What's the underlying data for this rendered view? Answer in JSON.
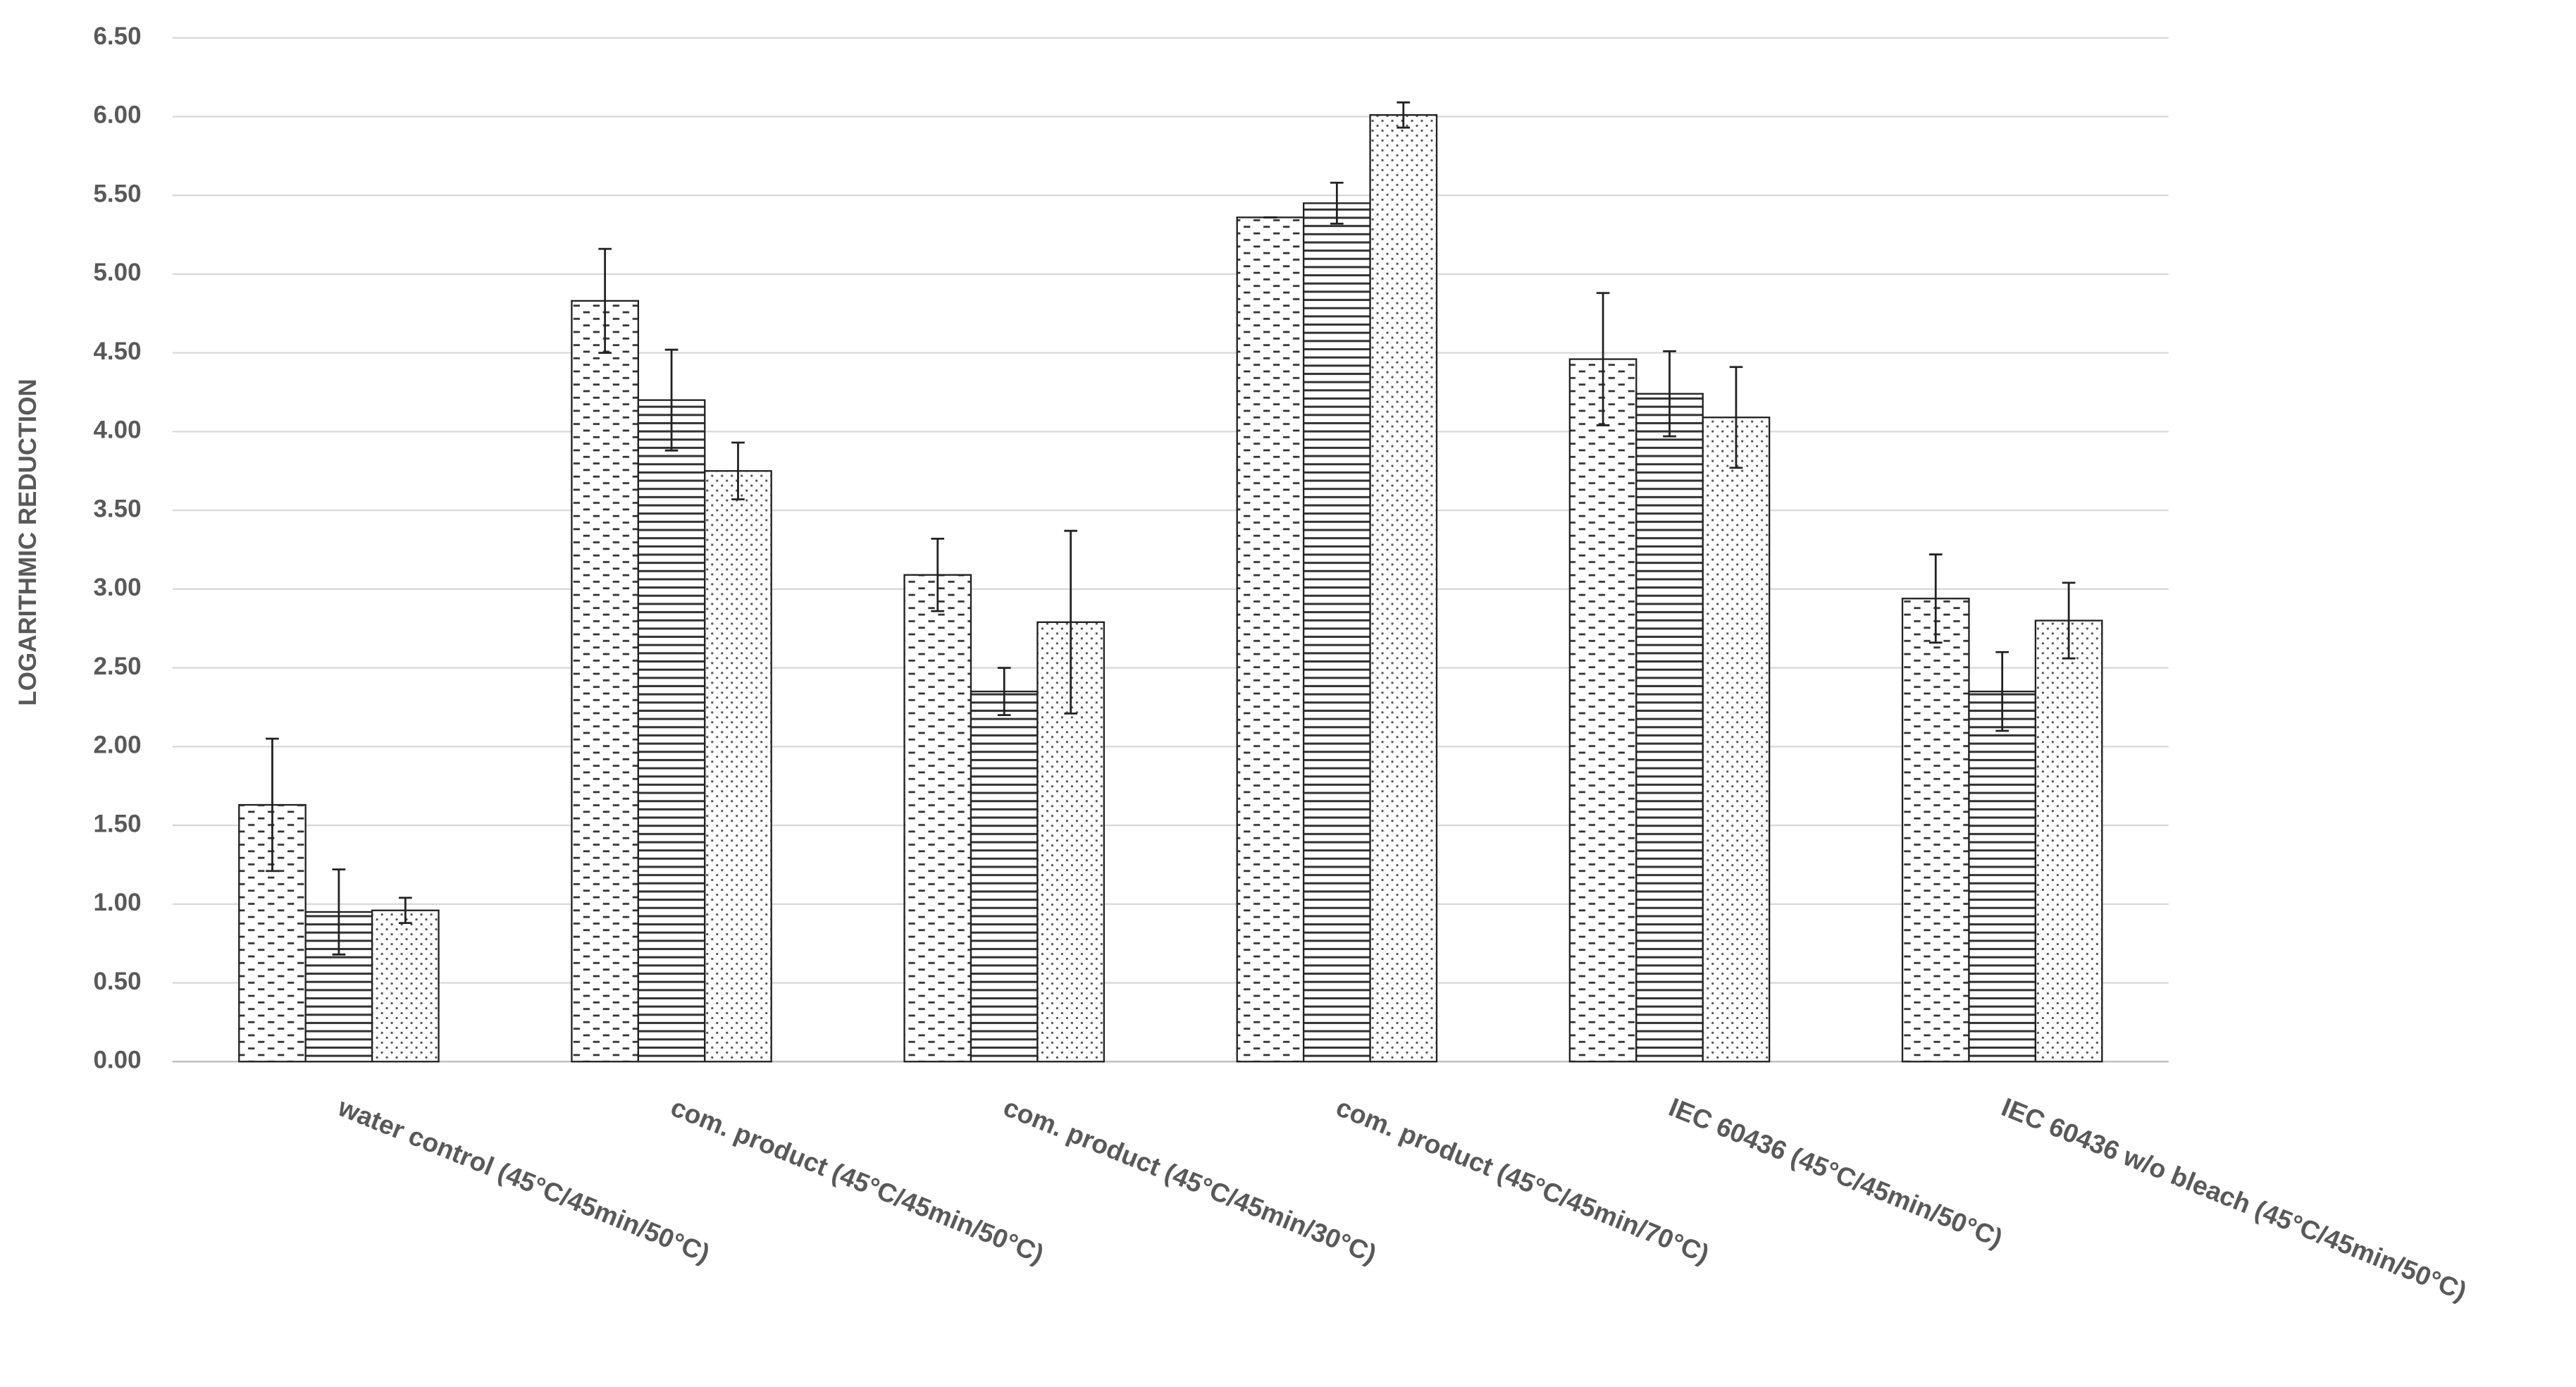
{
  "chart_data": {
    "type": "bar",
    "y_label": "LOGARITHMIC REDUCTION",
    "categories": [
      "water control (45°C/45min/50°C)",
      "com. product (45°C/45min/50°C)",
      "com. product (45°C/45min/30°C)",
      "com. product (45°C/45min/70°C)",
      "IEC 60436 (45°C/45min/50°C)",
      "IEC 60436 w/o bleach (45°C/45min/50°C)"
    ],
    "series": [
      {
        "color": "#ffffff",
        "pattern": "dashes",
        "values": [
          1.63,
          4.83,
          3.09,
          5.36,
          4.46,
          2.94
        ],
        "errors": [
          0.42,
          0.33,
          0.23,
          0.0,
          0.42,
          0.28
        ]
      },
      {
        "color": "#ffffff",
        "pattern": "hlines",
        "values": [
          0.95,
          4.2,
          2.35,
          5.45,
          4.24,
          2.35
        ],
        "errors": [
          0.27,
          0.32,
          0.15,
          0.13,
          0.27,
          0.25
        ]
      },
      {
        "color": "#ffffff",
        "pattern": "dots",
        "values": [
          0.96,
          3.75,
          2.79,
          6.01,
          4.09,
          2.8
        ],
        "errors": [
          0.08,
          0.18,
          0.58,
          0.08,
          0.32,
          0.24
        ]
      }
    ],
    "ylim": [
      0,
      6.5
    ],
    "yticks": [
      {
        "value": 0,
        "label": "0.00"
      },
      {
        "value": 0.5,
        "label": "0.50"
      },
      {
        "value": 1,
        "label": "1.00"
      },
      {
        "value": 1.5,
        "label": "1.50"
      },
      {
        "value": 2,
        "label": "2.00"
      },
      {
        "value": 2.5,
        "label": "2.50"
      },
      {
        "value": 3,
        "label": "3.00"
      },
      {
        "value": 3.5,
        "label": "3.50"
      },
      {
        "value": 4,
        "label": "4.00"
      },
      {
        "value": 4.5,
        "label": "4.50"
      },
      {
        "value": 5,
        "label": "5.00"
      },
      {
        "value": 5.5,
        "label": "5.50"
      },
      {
        "value": 6,
        "label": "6.00"
      },
      {
        "value": 6.5,
        "label": "6.50"
      }
    ],
    "grid": true
  }
}
